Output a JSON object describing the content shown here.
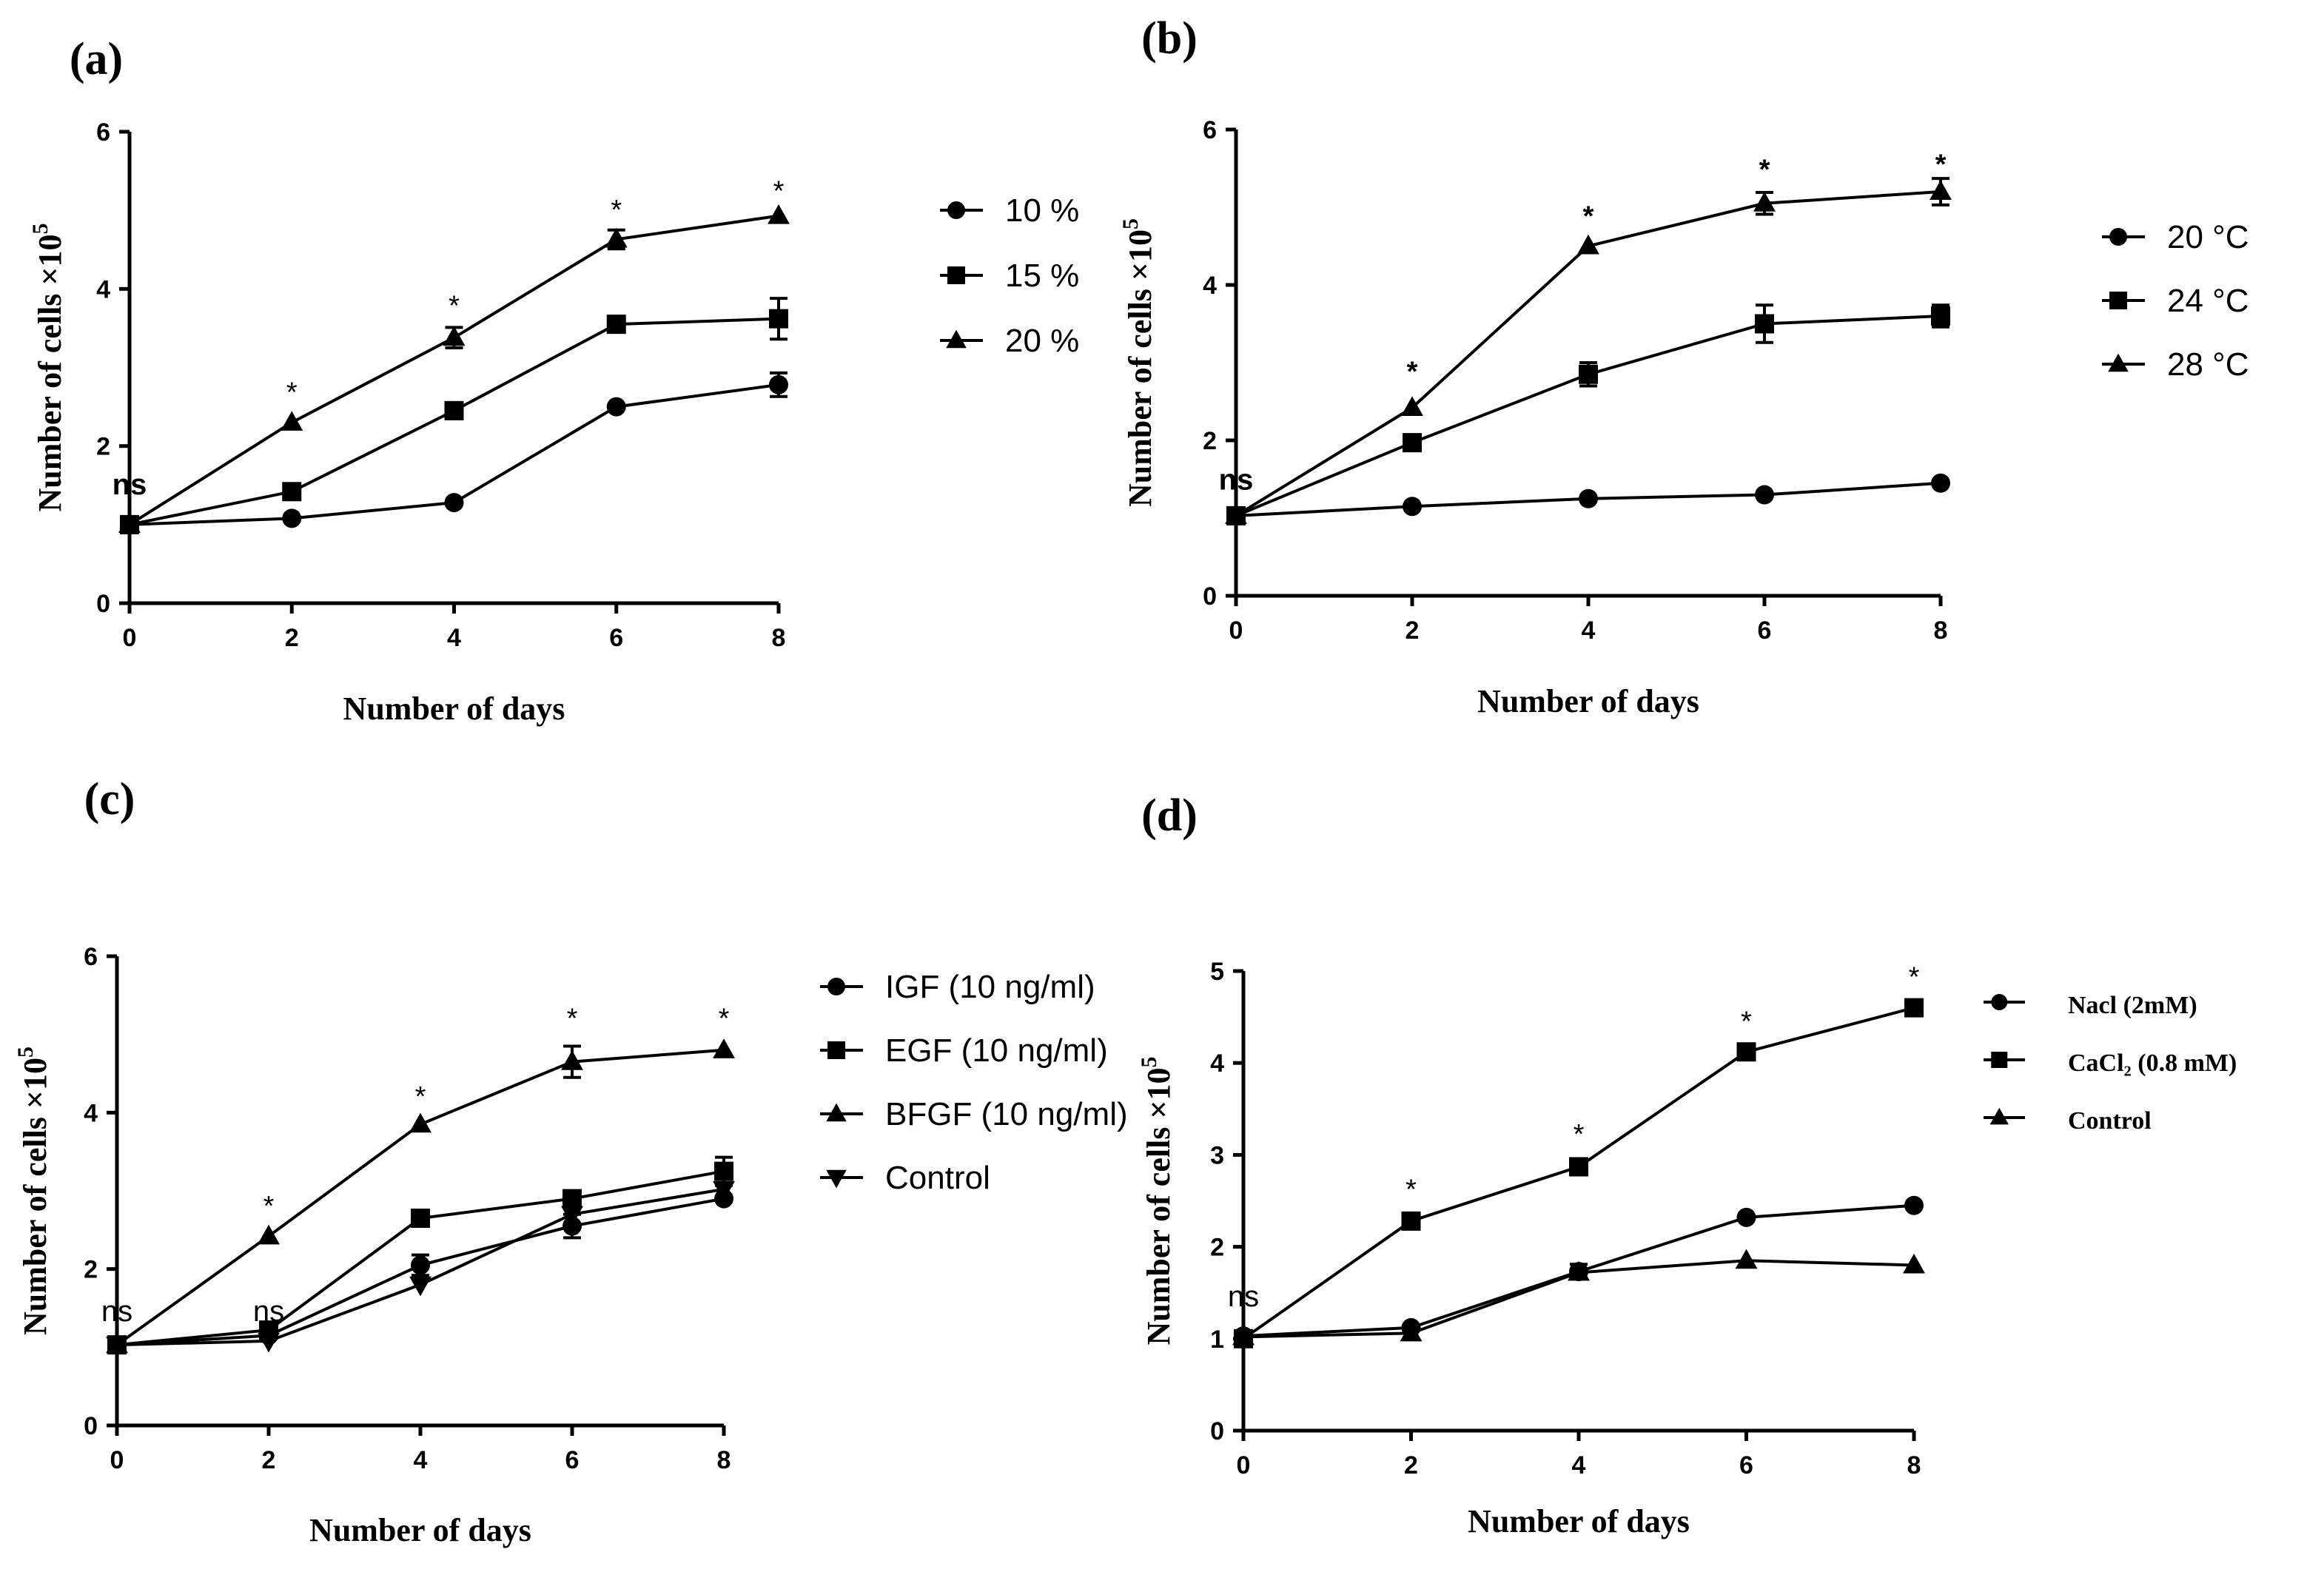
{
  "chart_data": [
    {
      "id": "a",
      "type": "line",
      "panel_label": "(a)",
      "title": "",
      "xlabel": "Number of days",
      "ylabel": "Number of cells ×10",
      "ylabel_sup": "5",
      "xlim": [
        0,
        8
      ],
      "ylim": [
        0,
        6
      ],
      "xticks": [
        "0",
        "2",
        "4",
        "6",
        "8"
      ],
      "yticks": [
        "0",
        "2",
        "4",
        "6"
      ],
      "legend_placement": "right",
      "legend_style": "sans",
      "series": [
        {
          "name": "10 %",
          "marker": "circle",
          "x": [
            0,
            2,
            4,
            6,
            8
          ],
          "y": [
            1.0,
            1.08,
            1.28,
            2.5,
            2.78
          ],
          "err": [
            0,
            0,
            0,
            0,
            0.15
          ]
        },
        {
          "name": "15 %",
          "marker": "square",
          "x": [
            0,
            2,
            4,
            6,
            8
          ],
          "y": [
            1.0,
            1.42,
            2.45,
            3.55,
            3.62
          ],
          "err": [
            0,
            0,
            0,
            0,
            0.26
          ]
        },
        {
          "name": "20 %",
          "marker": "triangle-up",
          "x": [
            0,
            2,
            4,
            6,
            8
          ],
          "y": [
            1.0,
            2.3,
            3.38,
            4.63,
            4.93
          ],
          "err": [
            0,
            0,
            0.13,
            0.12,
            0
          ]
        }
      ],
      "annotations": [
        {
          "text": "ns",
          "x": 0,
          "y": 1.5,
          "style": "ns-bold"
        },
        {
          "text": "*",
          "x": 2,
          "y": 2.68,
          "style": "star"
        },
        {
          "text": "*",
          "x": 4,
          "y": 3.78,
          "style": "star"
        },
        {
          "text": "*",
          "x": 6,
          "y": 5.0,
          "style": "star"
        },
        {
          "text": "*",
          "x": 8,
          "y": 5.24,
          "style": "star"
        }
      ]
    },
    {
      "id": "b",
      "type": "line",
      "panel_label": "(b)",
      "title": "",
      "xlabel": "Number of days",
      "ylabel": "Number of cells ×10",
      "ylabel_sup": "5",
      "xlim": [
        0,
        8
      ],
      "ylim": [
        0,
        6
      ],
      "xticks": [
        "0",
        "2",
        "4",
        "6",
        "8"
      ],
      "yticks": [
        "0",
        "2",
        "4",
        "6"
      ],
      "legend_placement": "right",
      "legend_style": "sans",
      "series": [
        {
          "name": "20 °C",
          "marker": "circle",
          "x": [
            0,
            2,
            4,
            6,
            8
          ],
          "y": [
            1.03,
            1.15,
            1.25,
            1.3,
            1.45
          ],
          "err": [
            0,
            0,
            0,
            0,
            0
          ]
        },
        {
          "name": "24 °C",
          "marker": "square",
          "x": [
            0,
            2,
            4,
            6,
            8
          ],
          "y": [
            1.03,
            1.97,
            2.85,
            3.5,
            3.6
          ],
          "err": [
            0,
            0,
            0.15,
            0.24,
            0.14
          ]
        },
        {
          "name": "28 °C",
          "marker": "triangle-up",
          "x": [
            0,
            2,
            4,
            6,
            8
          ],
          "y": [
            1.03,
            2.42,
            4.5,
            5.05,
            5.2
          ],
          "err": [
            0,
            0,
            0,
            0.14,
            0.17
          ]
        }
      ],
      "annotations": [
        {
          "text": "ns",
          "x": 0,
          "y": 1.48,
          "style": "ns-bold"
        },
        {
          "text": "*",
          "x": 2,
          "y": 2.88,
          "style": "star-bold"
        },
        {
          "text": "*",
          "x": 4,
          "y": 4.88,
          "style": "star-bold"
        },
        {
          "text": "*",
          "x": 6,
          "y": 5.48,
          "style": "star-bold"
        },
        {
          "text": "*",
          "x": 8,
          "y": 5.55,
          "style": "star-bold"
        }
      ]
    },
    {
      "id": "c",
      "type": "line",
      "panel_label": "(c)",
      "title": "",
      "xlabel": "Number of days",
      "ylabel": "Number of cells ×10",
      "ylabel_sup": "5",
      "xlim": [
        0,
        8
      ],
      "ylim": [
        0,
        6
      ],
      "xticks": [
        "0",
        "2",
        "4",
        "6",
        "8"
      ],
      "yticks": [
        "0",
        "2",
        "4",
        "6"
      ],
      "legend_placement": "right",
      "legend_style": "sans",
      "series": [
        {
          "name": "IGF (10 ng/ml)",
          "marker": "circle",
          "x": [
            0,
            2,
            4,
            6,
            8
          ],
          "y": [
            1.03,
            1.15,
            2.05,
            2.55,
            2.9
          ],
          "err": [
            0,
            0,
            0.13,
            0.15,
            0
          ]
        },
        {
          "name": "EGF (10 ng/ml)",
          "marker": "square",
          "x": [
            0,
            2,
            4,
            6,
            8
          ],
          "y": [
            1.03,
            1.22,
            2.65,
            2.9,
            3.25
          ],
          "err": [
            0,
            0,
            0,
            0,
            0.18
          ]
        },
        {
          "name": "BFGF (10 ng/ml)",
          "marker": "triangle-up",
          "x": [
            0,
            2,
            4,
            6,
            8
          ],
          "y": [
            1.03,
            2.42,
            3.85,
            4.65,
            4.8
          ],
          "err": [
            0,
            0,
            0,
            0.2,
            0
          ]
        },
        {
          "name": "Control",
          "marker": "triangle-down",
          "x": [
            0,
            2,
            4,
            6,
            8
          ],
          "y": [
            1.03,
            1.08,
            1.8,
            2.7,
            3.02
          ],
          "err": [
            0,
            0,
            0,
            0,
            0
          ]
        }
      ],
      "annotations": [
        {
          "text": "ns",
          "x": 0,
          "y": 1.45,
          "style": "ns"
        },
        {
          "text": "ns",
          "x": 2,
          "y": 1.45,
          "style": "ns"
        },
        {
          "text": "*",
          "x": 2,
          "y": 2.8,
          "style": "star"
        },
        {
          "text": "*",
          "x": 4,
          "y": 4.2,
          "style": "star"
        },
        {
          "text": "*",
          "x": 6,
          "y": 5.2,
          "style": "star"
        },
        {
          "text": "*",
          "x": 8,
          "y": 5.2,
          "style": "star"
        }
      ]
    },
    {
      "id": "d",
      "type": "line",
      "panel_label": "(d)",
      "title": "",
      "xlabel": "Number of days",
      "ylabel": "Number of cells ×10",
      "ylabel_sup": "5",
      "xlim": [
        0,
        8
      ],
      "ylim": [
        0,
        5
      ],
      "xticks": [
        "0",
        "2",
        "4",
        "6",
        "8"
      ],
      "yticks": [
        "0",
        "1",
        "2",
        "3",
        "4",
        "5"
      ],
      "legend_placement": "right",
      "legend_style": "serif",
      "series": [
        {
          "name": "Nacl (2mM)",
          "marker": "circle",
          "x": [
            0,
            2,
            4,
            6,
            8
          ],
          "y": [
            1.03,
            1.12,
            1.73,
            2.32,
            2.45
          ],
          "err": [
            0,
            0,
            0.08,
            0,
            0
          ]
        },
        {
          "name": "CaCl₂ (0.8 mM)",
          "marker": "square",
          "x": [
            0,
            2,
            4,
            6,
            8
          ],
          "y": [
            1.0,
            2.28,
            2.87,
            4.12,
            4.6
          ],
          "err": [
            0,
            0,
            0,
            0,
            0
          ]
        },
        {
          "name": "Control",
          "marker": "triangle-up",
          "x": [
            0,
            2,
            4,
            6,
            8
          ],
          "y": [
            1.02,
            1.06,
            1.72,
            1.85,
            1.8
          ],
          "err": [
            0,
            0,
            0,
            0,
            0
          ]
        }
      ],
      "annotations": [
        {
          "text": "ns",
          "x": 0,
          "y": 1.45,
          "style": "ns"
        },
        {
          "text": "*",
          "x": 2,
          "y": 2.62,
          "style": "star"
        },
        {
          "text": "*",
          "x": 4,
          "y": 3.22,
          "style": "star"
        },
        {
          "text": "*",
          "x": 6,
          "y": 4.45,
          "style": "star"
        },
        {
          "text": "*",
          "x": 8,
          "y": 4.93,
          "style": "star"
        }
      ]
    }
  ]
}
